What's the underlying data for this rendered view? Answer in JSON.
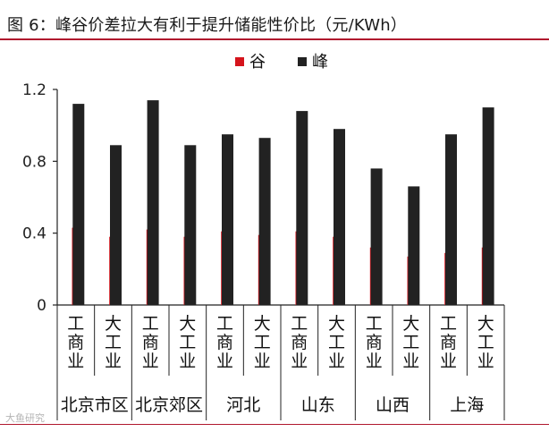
{
  "title": "图 6：峰谷价差拉大有利于提升储能性价比（元/KWh）",
  "watermark": "大鱼研究",
  "colors": {
    "valley": "#d5141c",
    "peak": "#222222",
    "title_rule": "#b0182e"
  },
  "chart_data": {
    "type": "bar",
    "title": "峰谷价差拉大有利于提升储能性价比（元/KWh）",
    "xlabel": "",
    "ylabel": "元/KWh",
    "ylim": [
      0,
      1.2
    ],
    "yticks": [
      "0",
      "0.4",
      "0.8",
      "1.2"
    ],
    "yticks_values": [
      0,
      0.4,
      0.8,
      1.2
    ],
    "legend": {
      "position": "top-center",
      "entries": [
        "谷",
        "峰"
      ]
    },
    "grid": false,
    "categories": [
      "工商业",
      "大工业",
      "工商业",
      "大工业",
      "工商业",
      "大工业",
      "工商业",
      "大工业",
      "工商业",
      "大工业",
      "工商业",
      "大工业"
    ],
    "groups": [
      "北京市区",
      "北京郊区",
      "河北",
      "山东",
      "山西",
      "上海"
    ],
    "series": [
      {
        "name": "谷",
        "values": [
          0.43,
          0.38,
          0.42,
          0.38,
          0.41,
          0.39,
          0.41,
          0.38,
          0.32,
          0.27,
          0.29,
          0.32
        ]
      },
      {
        "name": "峰",
        "values": [
          1.12,
          0.89,
          1.14,
          0.89,
          0.95,
          0.93,
          1.08,
          0.98,
          0.76,
          0.66,
          0.95,
          1.1
        ]
      }
    ]
  }
}
